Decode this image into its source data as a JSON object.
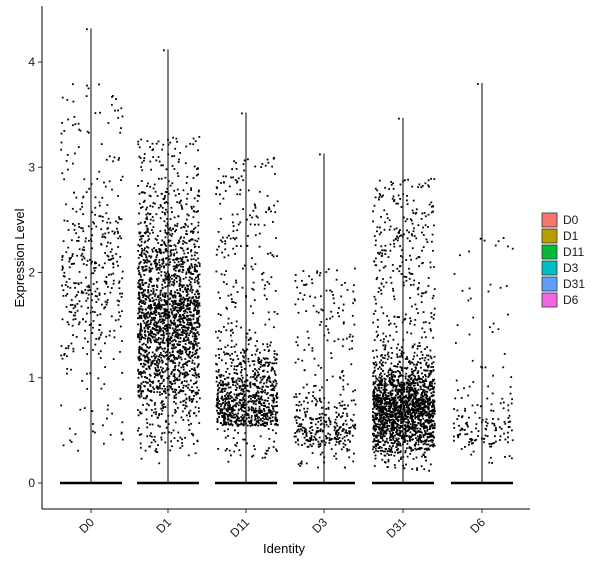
{
  "chart_data": {
    "type": "scatter",
    "subtype": "violin-jitter",
    "title": "",
    "xlabel": "Identity",
    "ylabel": "Expression Level",
    "ylim": [
      -0.25,
      4.55
    ],
    "y_ticks": [
      0,
      1,
      2,
      3,
      4
    ],
    "grid": false,
    "legend_position": "right",
    "legend_title": "",
    "categories": [
      "D0",
      "D1",
      "D11",
      "D3",
      "D31",
      "D6"
    ],
    "colors": {
      "D0": "#F8766D",
      "D1": "#B79F00",
      "D11": "#00BA38",
      "D3": "#00BFC4",
      "D31": "#619CFF",
      "D6": "#F564E3"
    },
    "series": [
      {
        "name": "D0",
        "max": 4.32,
        "point_density": "low",
        "zero_baseline": true,
        "nonzero_bulk_range": [
          0.3,
          2.6
        ]
      },
      {
        "name": "D1",
        "max": 4.12,
        "point_density": "high",
        "zero_baseline": true,
        "nonzero_bulk_range": [
          0.3,
          2.3
        ]
      },
      {
        "name": "D11",
        "max": 3.52,
        "point_density": "medium",
        "zero_baseline": true,
        "nonzero_bulk_range": [
          0.2,
          1.1
        ]
      },
      {
        "name": "D3",
        "max": 3.13,
        "point_density": "low",
        "zero_baseline": true,
        "nonzero_bulk_range": [
          0.15,
          1.9
        ]
      },
      {
        "name": "D31",
        "max": 3.47,
        "point_density": "high",
        "zero_baseline": true,
        "nonzero_bulk_range": [
          0.3,
          1.3
        ]
      },
      {
        "name": "D6",
        "max": 3.8,
        "point_density": "very low",
        "zero_baseline": true,
        "nonzero_bulk_range": [
          0.15,
          1.0
        ]
      }
    ]
  }
}
